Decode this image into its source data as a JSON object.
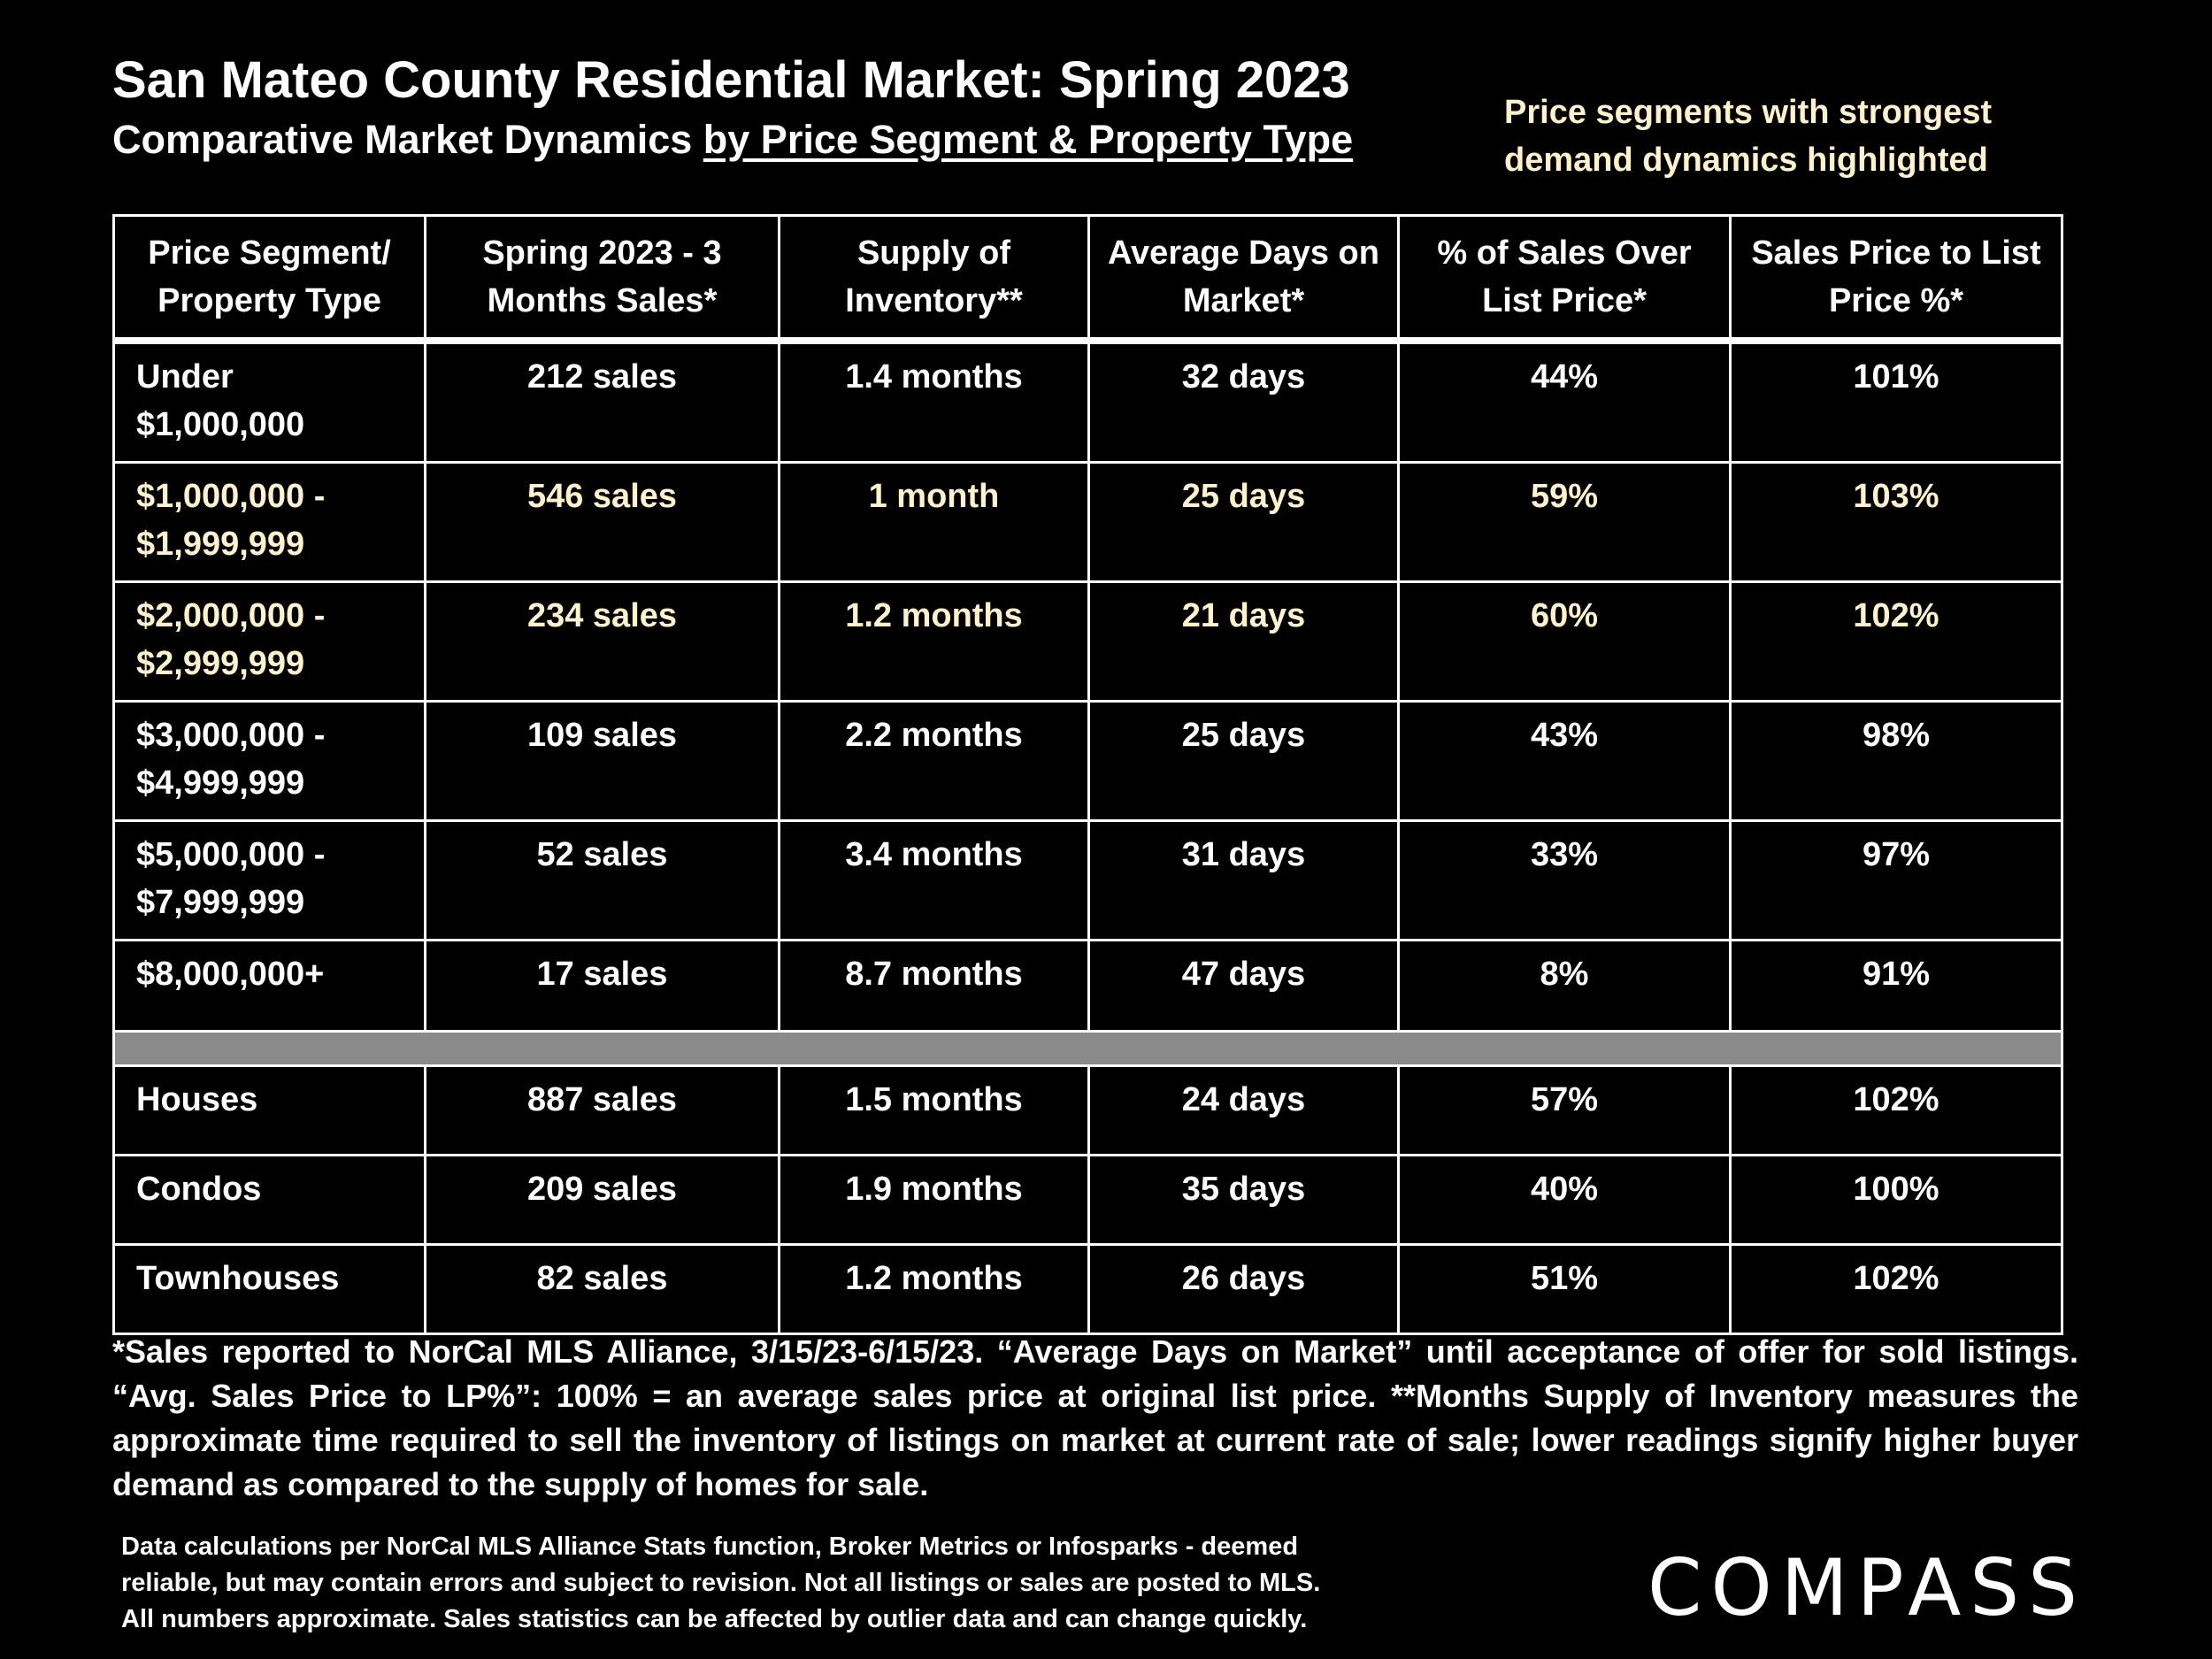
{
  "header": {
    "title": "San Mateo County Residential Market:  Spring 2023",
    "subtitle_plain": "Comparative Market Dynamics ",
    "subtitle_underlined": "by Price Segment & Property Type",
    "highlight_note_line1": "Price segments with strongest",
    "highlight_note_line2": "demand dynamics highlighted"
  },
  "table": {
    "headers": [
      "Price Segment/ Property Type",
      "Spring 2023 - 3 Months Sales*",
      "Supply of Inventory**",
      "Average Days on Market*",
      "% of Sales Over List Price*",
      "Sales Price to List Price %*"
    ],
    "segments": [
      {
        "label": "Under\n$1,000,000",
        "sales": "212 sales",
        "supply": "1.4 months",
        "dom": "32 days",
        "over": "44%",
        "sp_lp": "101%"
      },
      {
        "label": "$1,000,000 -\n$1,999,999",
        "sales": "546 sales",
        "supply": "1 month",
        "dom": "25 days",
        "over": "59%",
        "sp_lp": "103%"
      },
      {
        "label": "$2,000,000 -\n$2,999,999",
        "sales": "234 sales",
        "supply": "1.2 months",
        "dom": "21 days",
        "over": "60%",
        "sp_lp": "102%"
      },
      {
        "label": "$3,000,000 -\n$4,999,999",
        "sales": "109 sales",
        "supply": "2.2 months",
        "dom": "25 days",
        "over": "43%",
        "sp_lp": "98%"
      },
      {
        "label": "$5,000,000 -\n$7,999,999",
        "sales": "52 sales",
        "supply": "3.4 months",
        "dom": "31 days",
        "over": "33%",
        "sp_lp": "97%"
      },
      {
        "label": "$8,000,000+",
        "sales": "17 sales",
        "supply": "8.7 months",
        "dom": "47 days",
        "over": "8%",
        "sp_lp": "91%"
      }
    ],
    "property_types": [
      {
        "label": "Houses",
        "sales": "887 sales",
        "supply": "1.5 months",
        "dom": "24 days",
        "over": "57%",
        "sp_lp": "102%"
      },
      {
        "label": "Condos",
        "sales": "209 sales",
        "supply": "1.9 months",
        "dom": "35 days",
        "over": "40%",
        "sp_lp": "100%"
      },
      {
        "label": "Townhouses",
        "sales": "82 sales",
        "supply": "1.2 months",
        "dom": "26 days",
        "over": "51%",
        "sp_lp": "102%"
      }
    ],
    "highlight_color": "#fff2cc",
    "separator_color": "#8a8a8a"
  },
  "footnote": "*Sales reported to NorCal MLS Alliance, 3/15/23-6/15/23. “Average Days on Market” until acceptance of offer for sold listings. “Avg. Sales Price to LP%”: 100% = an average sales price at original list price. **Months Supply of Inventory measures the approximate time required to sell the inventory of listings on market at current rate of sale; lower readings signify higher buyer demand as compared to the supply of homes for sale.",
  "disclaimer": {
    "line1": "Data calculations per NorCal MLS Alliance Stats function, Broker Metrics or Infosparks - deemed",
    "line2": "reliable, but may contain errors and subject to revision.  Not all listings or sales are posted to MLS.",
    "line3": "All numbers approximate. Sales statistics can be affected by outlier data and can change quickly."
  },
  "logo": "COMPASS"
}
